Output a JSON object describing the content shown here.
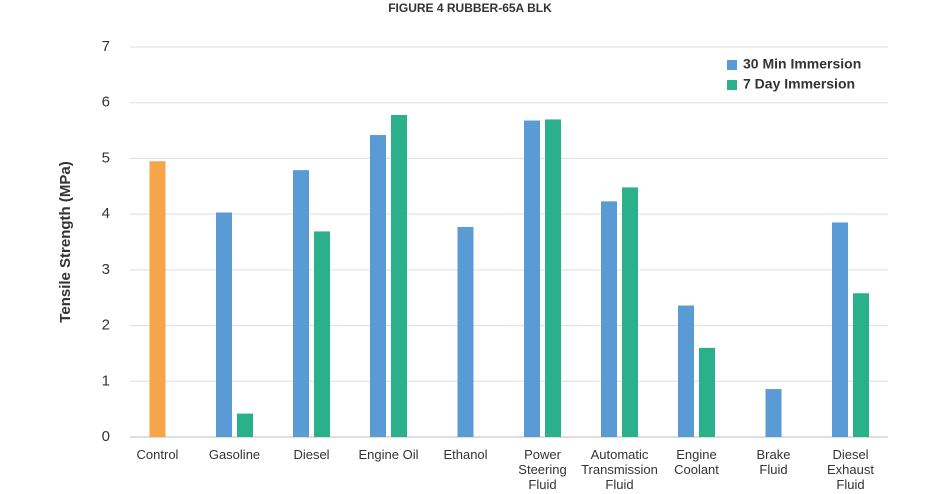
{
  "chart_data": {
    "type": "bar",
    "title": "FIGURE 4 RUBBER-65A BLK",
    "y_label": "Tensile Strength (MPa)",
    "categories": [
      "Control",
      "Gasoline",
      "Diesel",
      "Engine Oil",
      "Ethanol",
      "Power\nSteering\nFluid",
      "Automatic\nTransmission\nFluid",
      "Engine\nCoolant",
      "Brake\nFluid",
      "Diesel\nExhaust\nFluid"
    ],
    "series": [
      {
        "name": "30 Min Immersion",
        "color": "#5b9bd5",
        "point_colors": [
          "#f7a54a",
          "#5b9bd5",
          "#5b9bd5",
          "#5b9bd5",
          "#5b9bd5",
          "#5b9bd5",
          "#5b9bd5",
          "#5b9bd5",
          "#5b9bd5",
          "#5b9bd5"
        ],
        "values": [
          4.95,
          4.03,
          4.79,
          5.42,
          3.77,
          5.68,
          4.23,
          2.36,
          0.86,
          3.85
        ]
      },
      {
        "name": "7 Day Immersion",
        "color": "#2ab08a",
        "values": [
          null,
          0.42,
          3.69,
          5.78,
          null,
          5.7,
          4.48,
          1.6,
          null,
          2.58
        ]
      }
    ],
    "ylim": [
      0,
      7
    ],
    "yticks": [
      0,
      1,
      2,
      3,
      4,
      5,
      6,
      7
    ],
    "grid": true,
    "legend": "top-right"
  }
}
